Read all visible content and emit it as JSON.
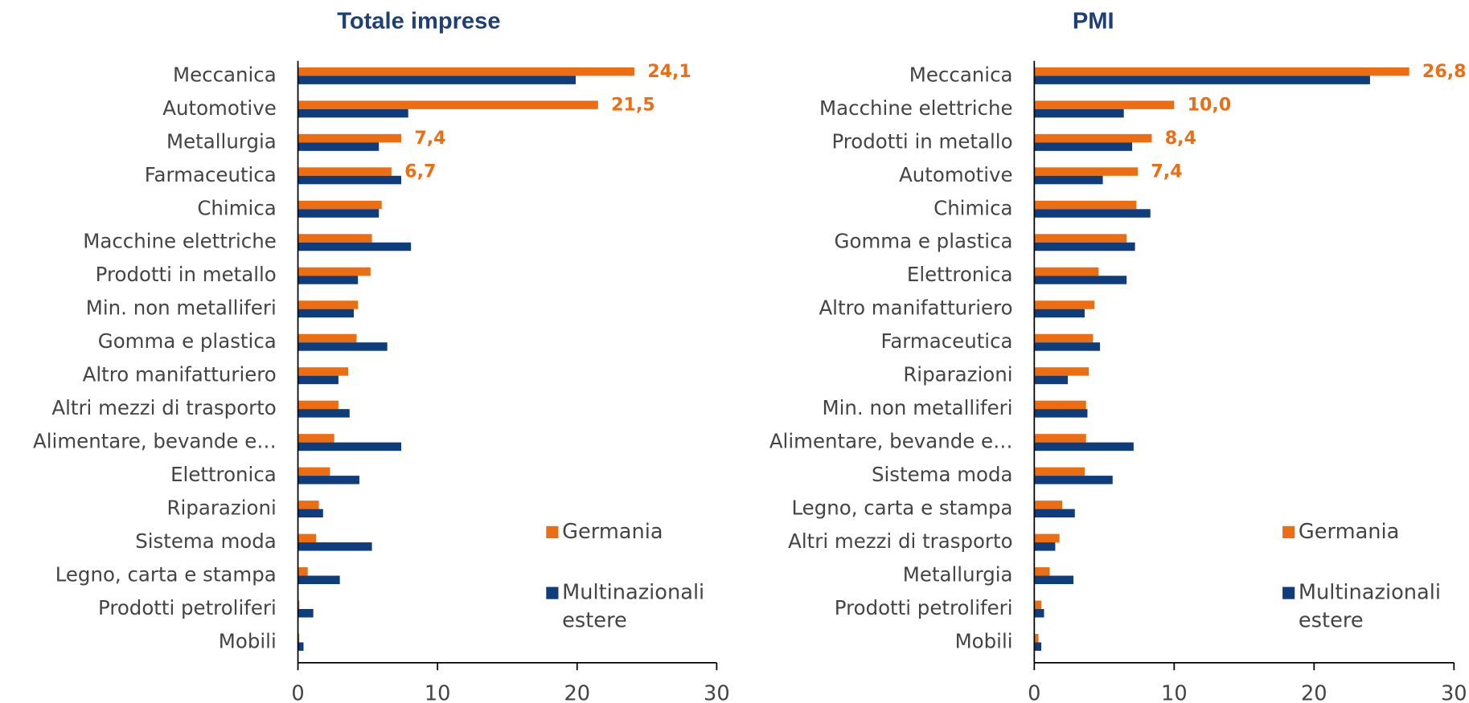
{
  "chart_data": [
    {
      "type": "bar",
      "orientation": "horizontal",
      "title": "Totale imprese",
      "categories": [
        "Meccanica",
        "Automotive",
        "Metallurgia",
        "Farmaceutica",
        "Chimica",
        "Macchine elettriche",
        "Prodotti in metallo",
        "Min. non metalliferi",
        "Gomma e plastica",
        "Altro manifatturiero",
        "Altri mezzi di trasporto",
        "Alimentare, bevande e…",
        "Elettronica",
        "Riparazioni",
        "Sistema moda",
        "Legno, carta e stampa",
        "Prodotti petroliferi",
        "Mobili"
      ],
      "series": [
        {
          "name": "Germania",
          "color": "#ed6d13",
          "values": [
            24.1,
            21.5,
            7.4,
            6.7,
            6.0,
            5.3,
            5.2,
            4.3,
            4.2,
            3.6,
            2.9,
            2.6,
            2.3,
            1.5,
            1.3,
            0.7,
            0.1,
            0.1
          ],
          "value_labels": [
            "24,1",
            "21,5",
            "7,4",
            "6,7",
            null,
            null,
            null,
            null,
            null,
            null,
            null,
            null,
            null,
            null,
            null,
            null,
            null,
            null
          ]
        },
        {
          "name": "Multinazionali estere",
          "color": "#0f3c7b",
          "values": [
            19.9,
            7.9,
            5.8,
            7.4,
            5.8,
            8.1,
            4.3,
            4.0,
            6.4,
            2.9,
            3.7,
            7.4,
            4.4,
            1.8,
            5.3,
            3.0,
            1.1,
            0.4
          ]
        }
      ],
      "xlim": [
        0,
        30
      ],
      "xticks": [
        0,
        10,
        20,
        30
      ],
      "legend": "lower right"
    },
    {
      "type": "bar",
      "orientation": "horizontal",
      "title": "PMI",
      "categories": [
        "Meccanica",
        "Macchine elettriche",
        "Prodotti in metallo",
        "Automotive",
        "Chimica",
        "Gomma e plastica",
        "Elettronica",
        "Altro manifatturiero",
        "Farmaceutica",
        "Riparazioni",
        "Min. non metalliferi",
        "Alimentare, bevande e…",
        "Sistema moda",
        "Legno, carta e stampa",
        "Altri mezzi di trasporto",
        "Metallurgia",
        "Prodotti petroliferi",
        "Mobili"
      ],
      "series": [
        {
          "name": "Germania",
          "color": "#ed6d13",
          "values": [
            26.8,
            10.0,
            8.4,
            7.4,
            7.3,
            6.6,
            4.6,
            4.3,
            4.2,
            3.9,
            3.7,
            3.7,
            3.6,
            2.0,
            1.8,
            1.1,
            0.5,
            0.3
          ],
          "value_labels": [
            "26,8",
            "10,0",
            "8,4",
            "7,4",
            null,
            null,
            null,
            null,
            null,
            null,
            null,
            null,
            null,
            null,
            null,
            null,
            null,
            null
          ]
        },
        {
          "name": "Multinazionali estere",
          "color": "#0f3c7b",
          "values": [
            24.0,
            6.4,
            7.0,
            4.9,
            8.3,
            7.2,
            6.6,
            3.6,
            4.7,
            2.4,
            3.8,
            7.1,
            5.6,
            2.9,
            1.5,
            2.8,
            0.7,
            0.5
          ]
        }
      ],
      "xlim": [
        0,
        30
      ],
      "xticks": [
        0,
        10,
        20,
        30
      ],
      "legend": "lower right"
    }
  ]
}
